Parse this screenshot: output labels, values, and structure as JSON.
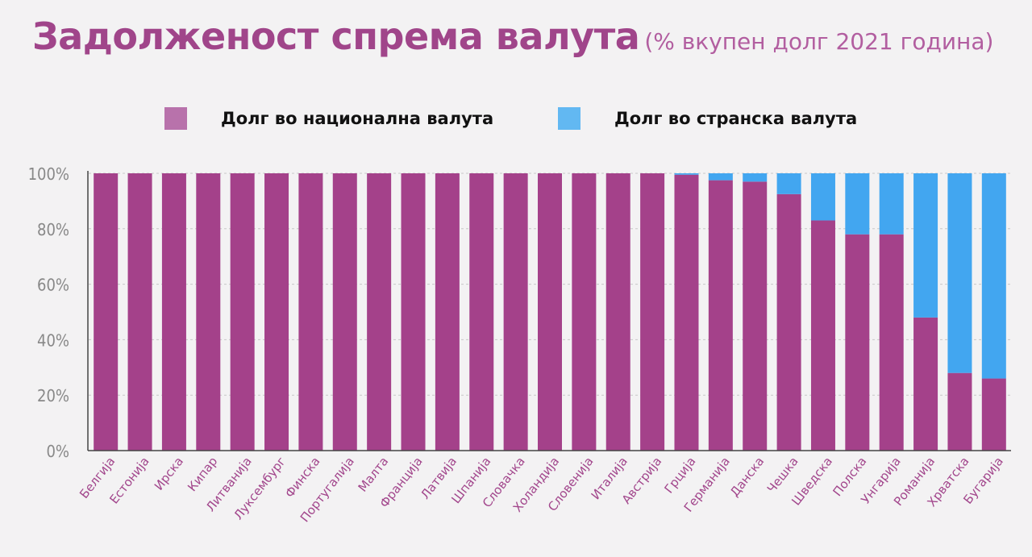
{
  "title": "Задолженост спрема валута",
  "subtitle": "(% вкупен долг 2021 година)",
  "legend": [
    {
      "label": "Долг во национална валута",
      "color": "#b872ab"
    },
    {
      "label": "Долг во странска валута",
      "color": "#62b8f2"
    }
  ],
  "colors": {
    "national": "#a4418a",
    "foreign": "#42a6f0",
    "axis": "#444444",
    "grid": "#c8c8c8",
    "tick_text": "#888888",
    "category_text": "#a2468c"
  },
  "chart_data": {
    "type": "bar",
    "stacked": true,
    "title": "Задолженост спрема валута",
    "subtitle": "(% вкупен долг 2021 година)",
    "categories": [
      "Белгија",
      "Естонија",
      "Ирска",
      "Кипар",
      "Литванија",
      "Луксембург",
      "Финска",
      "Португалија",
      "Малта",
      "Франција",
      "Латвија",
      "Шпанија",
      "Словачка",
      "Холандија",
      "Словенија",
      "Италија",
      "Австрија",
      "Грција",
      "Германија",
      "Данска",
      "Чешка",
      "Шведска",
      "Полска",
      "Унгарија",
      "Романија",
      "Хрватска",
      "Бугарија"
    ],
    "series": [
      {
        "name": "Долг во национална валута",
        "values": [
          100,
          100,
          100,
          100,
          100,
          100,
          100,
          100,
          100,
          100,
          100,
          100,
          100,
          100,
          100,
          100,
          100,
          99.5,
          97.5,
          97,
          92.5,
          83,
          78,
          78,
          48,
          28,
          26
        ]
      },
      {
        "name": "Долг во странска валута",
        "values": [
          0,
          0,
          0,
          0,
          0,
          0,
          0,
          0,
          0,
          0,
          0,
          0,
          0,
          0,
          0,
          0,
          0,
          0.5,
          2.5,
          3,
          7.5,
          17,
          22,
          22,
          52,
          72,
          74
        ]
      }
    ],
    "yticks": [
      "0%",
      "20%",
      "40%",
      "60%",
      "80%",
      "100%"
    ],
    "ylim": [
      0,
      100
    ],
    "grid": true,
    "legend_position": "top"
  }
}
